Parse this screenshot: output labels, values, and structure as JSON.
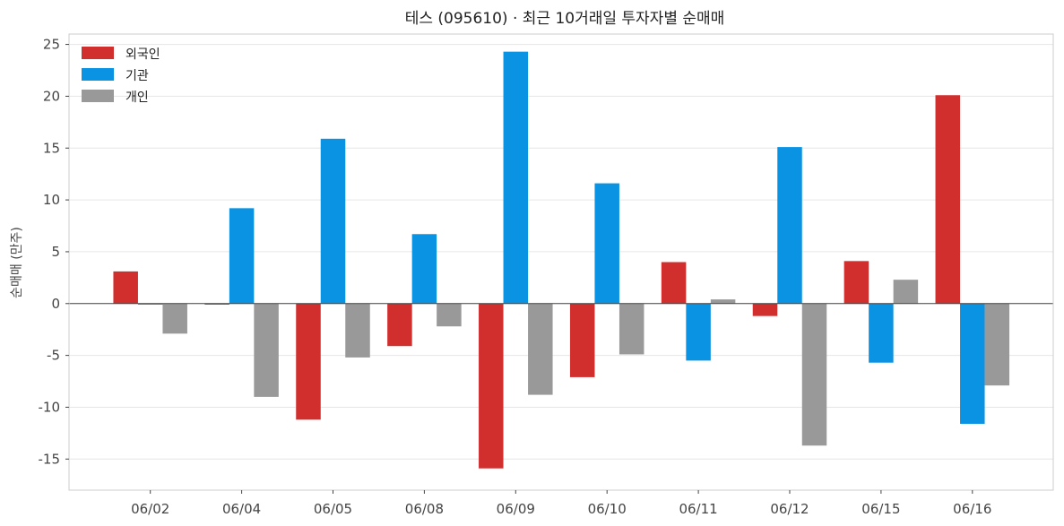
{
  "chart_data": {
    "type": "bar",
    "title": "테스 (095610) · 최근 10거래일 투자자별 순매매",
    "xlabel": "",
    "ylabel": "순매매 (만주)",
    "ylim": [
      -18,
      26
    ],
    "yticks": [
      -15,
      -10,
      -5,
      0,
      5,
      10,
      15,
      20,
      25
    ],
    "ytick_labels": [
      "-15",
      "-10",
      "-5",
      "0",
      "5",
      "10",
      "15",
      "20",
      "25"
    ],
    "grid": "horizontal",
    "legend_position": "top-left",
    "categories": [
      "06/02",
      "06/04",
      "06/05",
      "06/08",
      "06/09",
      "06/10",
      "06/11",
      "06/12",
      "06/15",
      "06/16"
    ],
    "series": [
      {
        "name": "외국인",
        "color": "#d12e2e",
        "values": [
          3.1,
          -0.1,
          -11.2,
          -4.1,
          -15.9,
          -7.1,
          4.0,
          -1.2,
          4.1,
          20.1
        ]
      },
      {
        "name": "기관",
        "color": "#0a93e3",
        "values": [
          -0.1,
          9.2,
          15.9,
          6.7,
          24.3,
          11.6,
          -5.5,
          15.1,
          -5.7,
          -11.6
        ]
      },
      {
        "name": "개인",
        "color": "#999999",
        "values": [
          -2.9,
          -9.0,
          -5.2,
          -2.2,
          -8.8,
          -4.9,
          0.4,
          -13.7,
          2.3,
          -7.9
        ]
      }
    ]
  }
}
